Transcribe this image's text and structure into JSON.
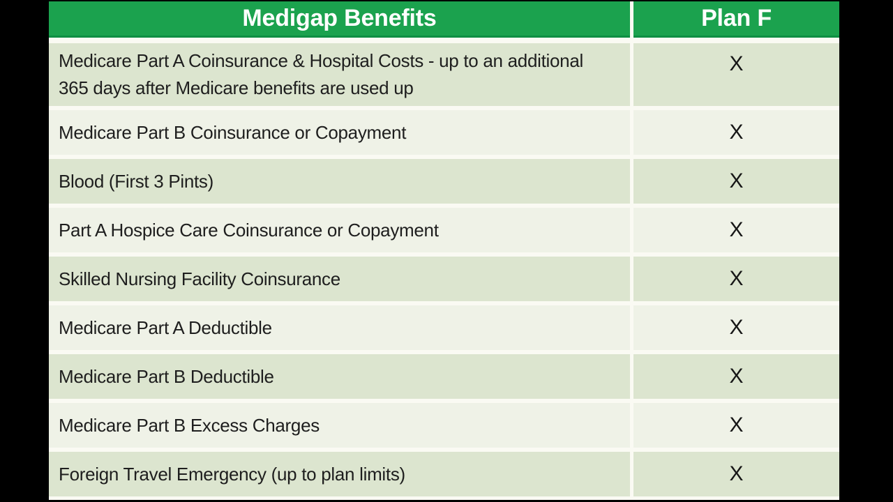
{
  "window": {
    "background_color": "#000000"
  },
  "table": {
    "columns": {
      "benefits_header": "Medigap Benefits",
      "plan_header": "Plan F"
    },
    "colors": {
      "header_bg": "#1ba24e",
      "header_border": "#0e8f43",
      "header_text": "#ffffff",
      "row_dark_bg": "#dce5cf",
      "row_light_bg": "#eff2e7",
      "gutter": "#fafaf3",
      "body_text": "#1e1e1e",
      "frame": "#000000"
    },
    "rows": [
      {
        "benefit": "Medicare Part A Coinsurance  & Hospital Costs  - up to an additional 365 days after Medicare benefits are used up",
        "plan_f": "X"
      },
      {
        "benefit": "Medicare Part B Coinsurance  or Copayment",
        "plan_f": "X"
      },
      {
        "benefit": "Blood (First 3 Pints)",
        "plan_f": "X"
      },
      {
        "benefit": "Part A Hospice Care Coinsurance  or Copayment",
        "plan_f": "X"
      },
      {
        "benefit": "Skilled Nursing Facility Coinsurance",
        "plan_f": "X"
      },
      {
        "benefit": "Medicare Part A Deductible",
        "plan_f": "X"
      },
      {
        "benefit": "Medicare Part B Deductible",
        "plan_f": "X"
      },
      {
        "benefit": "Medicare Part B Excess Charges",
        "plan_f": "X"
      },
      {
        "benefit": "Foreign Travel Emergency (up to plan limits)",
        "plan_f": "X"
      }
    ]
  }
}
